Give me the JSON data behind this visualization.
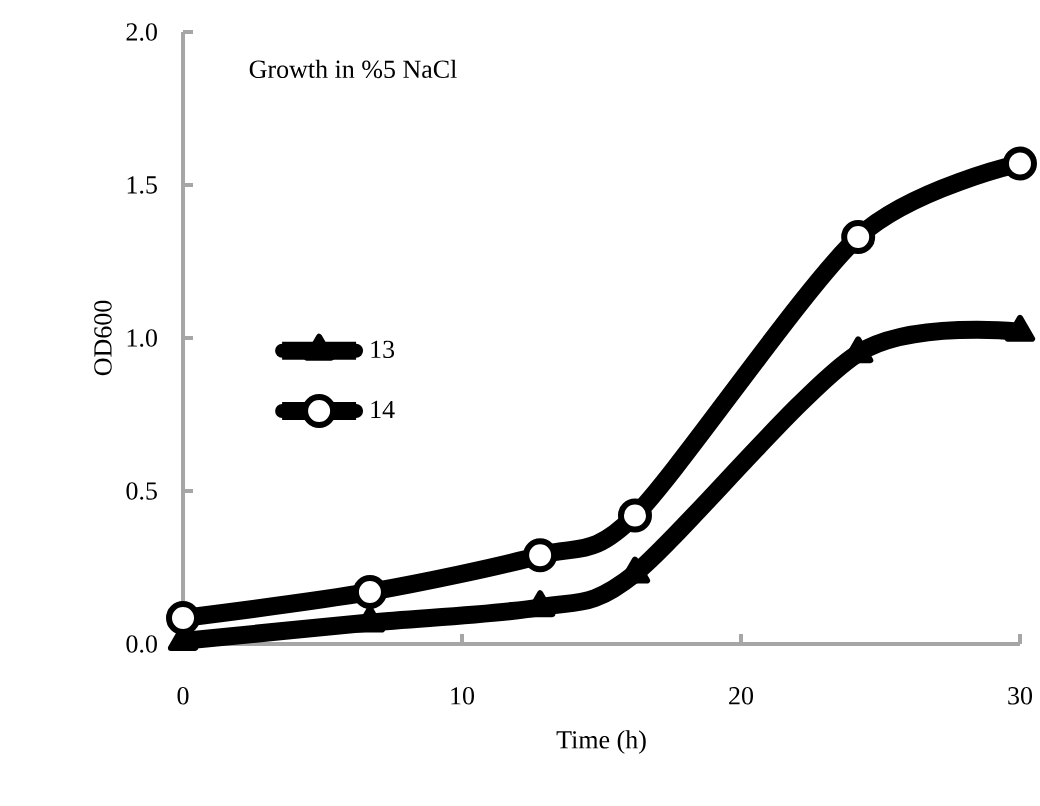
{
  "chart_data": {
    "type": "line",
    "title": "Growth in %5 NaCl",
    "xlabel": "Time (h)",
    "ylabel": "OD600",
    "x": [
      0,
      6.7,
      12.8,
      16.2,
      24.2,
      30
    ],
    "series": [
      {
        "name": "13",
        "color": "#000000",
        "marker": "triangle",
        "values": [
          0.01,
          0.07,
          0.12,
          0.23,
          0.95,
          1.02
        ]
      },
      {
        "name": "14",
        "color": "#000000",
        "marker": "circle",
        "values": [
          0.085,
          0.17,
          0.29,
          0.42,
          1.33,
          1.57
        ]
      }
    ],
    "xlim": [
      0,
      30
    ],
    "ylim": [
      0,
      2
    ],
    "xticks": [
      0,
      10,
      20,
      30
    ],
    "yticks": [
      {
        "value": 0,
        "label": "0.0"
      },
      0.5,
      {
        "value": 1,
        "label": "1.0"
      },
      1.5,
      {
        "value": 2,
        "label": "2.0"
      }
    ],
    "grid": false,
    "legend": "left",
    "line_style": "solid"
  }
}
